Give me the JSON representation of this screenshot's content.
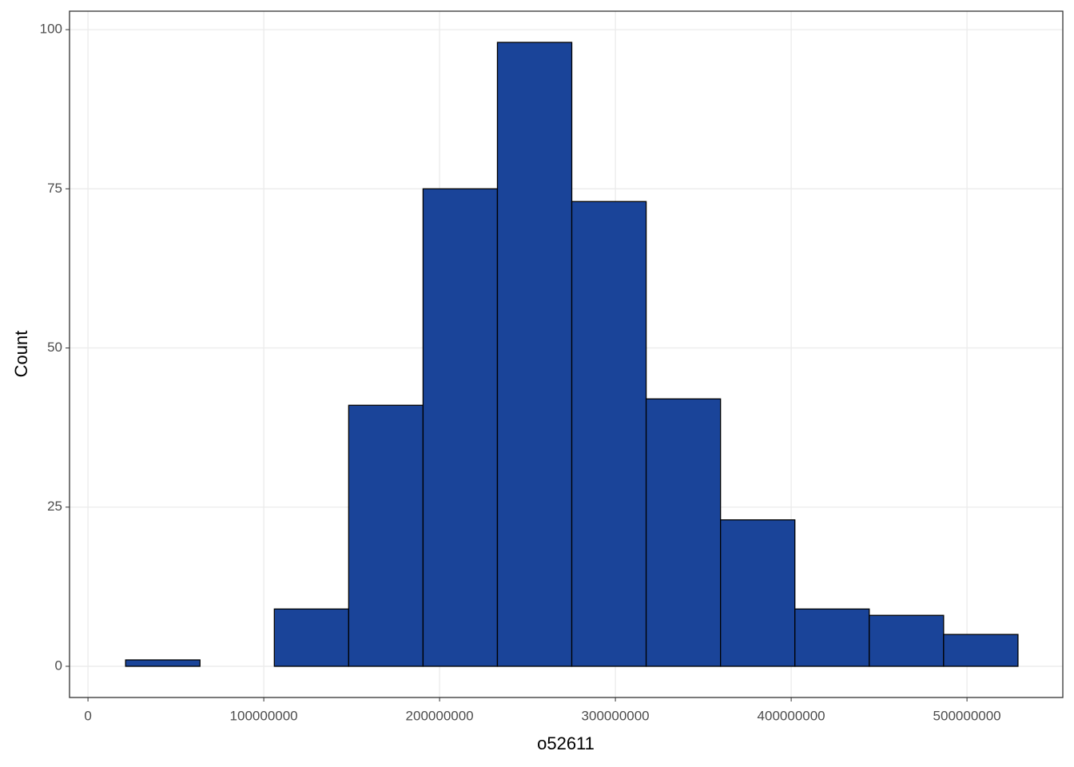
{
  "chart_data": {
    "type": "histogram",
    "x_label": "o52611",
    "y_label": "Count",
    "bins": [
      21400000,
      63700000,
      106000000,
      148300000,
      190600000,
      232900000,
      275200000,
      317500000,
      359800000,
      402100000,
      444400000,
      486700000,
      529000000
    ],
    "values": [
      1,
      0,
      9,
      41,
      75,
      98,
      73,
      42,
      23,
      9,
      8,
      5
    ],
    "color": "#1a4499",
    "xlim": [
      -10500000,
      554500000
    ],
    "xticks": [
      0,
      100000000,
      200000000,
      300000000,
      400000000,
      500000000
    ],
    "ylim": [
      -4.9,
      102.9
    ],
    "yticks": [
      0,
      25,
      50,
      75,
      100
    ],
    "grid": true
  }
}
